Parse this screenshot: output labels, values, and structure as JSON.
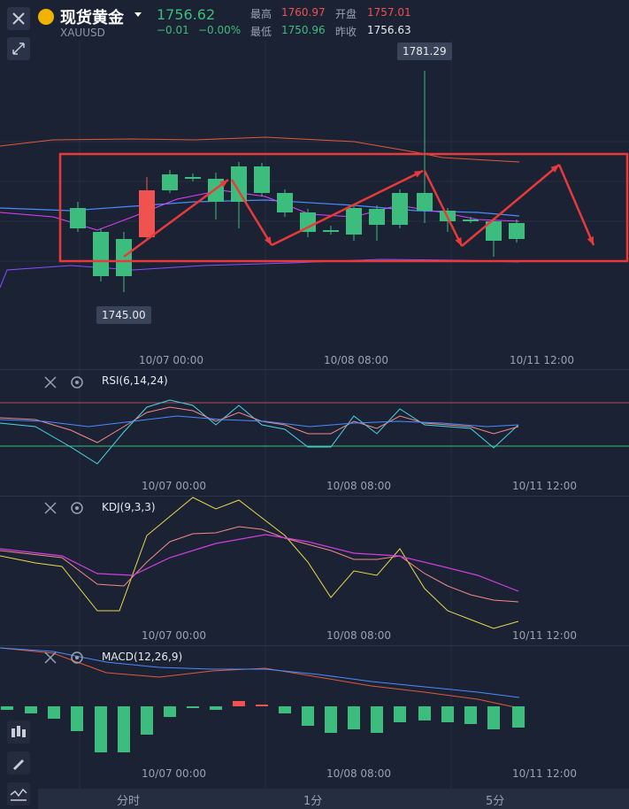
{
  "header": {
    "name": "现货黄金",
    "code": "XAUUSD",
    "price": "1756.62",
    "change": "−0.01",
    "change_pct": "−0.00%",
    "high_label": "最高",
    "high": "1760.97",
    "open_label": "开盘",
    "open": "1757.01",
    "low_label": "最低",
    "low": "1750.96",
    "prev_close_label": "昨收",
    "prev_close": "1756.63"
  },
  "main_chart": {
    "max_label": "1781.29",
    "min_label": "1745.00",
    "x_labels": [
      "10/07 00:00",
      "10/08 08:00",
      "10/11 12:00"
    ]
  },
  "rsi": {
    "title": "RSI(6,14,24)",
    "x_labels": [
      "10/07 00:00",
      "10/08 08:00",
      "10/11 12:00"
    ]
  },
  "kdj": {
    "title": "KDJ(9,3,3)",
    "x_labels": [
      "10/07 00:00",
      "10/08 08:00",
      "10/11 12:00"
    ]
  },
  "macd": {
    "title": "MACD(12,26,9)",
    "x_labels": [
      "10/07 00:00",
      "10/08 08:00",
      "10/11 12:00"
    ]
  },
  "tabs": [
    "分时",
    "1分",
    "5分"
  ],
  "colors": {
    "up": "#f0524f",
    "down": "#3dbd7d",
    "background": "#1b2233",
    "annotation": "#e83a3a"
  },
  "icons": [
    "close-icon",
    "shrink-icon",
    "gold-coin-icon",
    "dropdown-icon",
    "settings-icon",
    "candlestick-icon",
    "pencil-icon",
    "line-tool-icon"
  ]
}
